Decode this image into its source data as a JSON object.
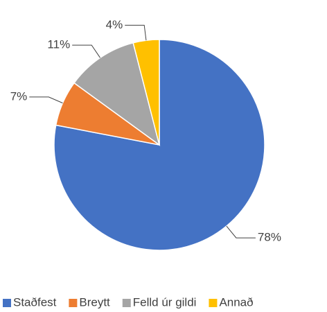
{
  "chart_data": {
    "type": "pie",
    "categories": [
      "Staðfest",
      "Breytt",
      "Felld úr gildi",
      "Annað"
    ],
    "values": [
      78,
      7,
      11,
      4
    ],
    "value_labels": [
      "78%",
      "7%",
      "11%",
      "4%"
    ],
    "colors": [
      "#4472c4",
      "#ed7d31",
      "#a5a5a5",
      "#ffc000"
    ],
    "legend": "bottom"
  }
}
